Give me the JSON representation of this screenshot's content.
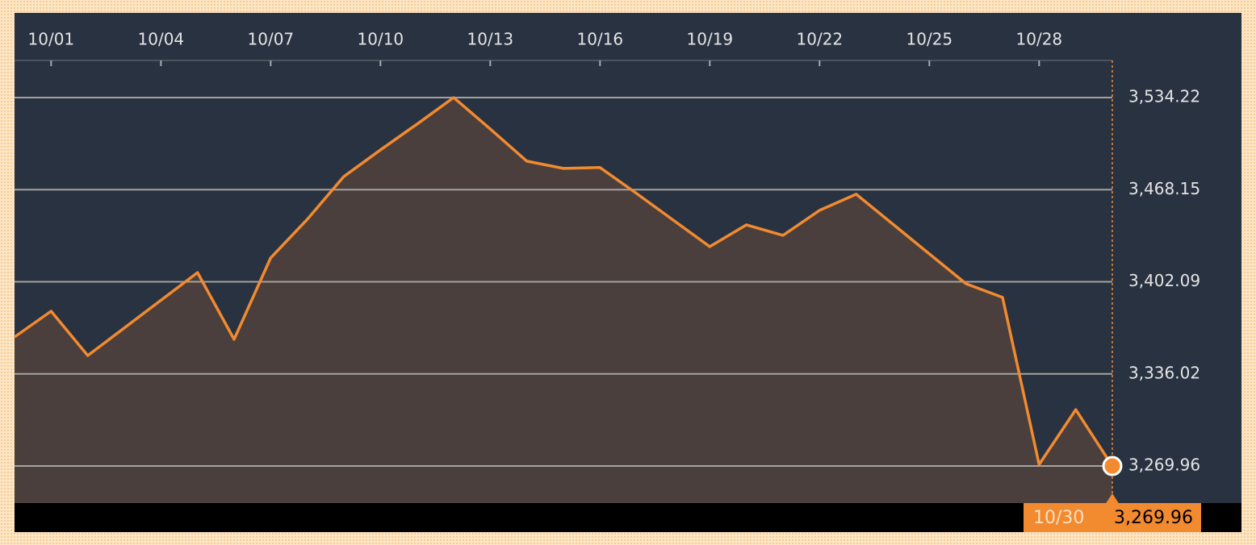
{
  "chart_data": {
    "type": "area",
    "x": [
      0,
      1,
      2,
      5,
      6,
      7,
      8,
      9,
      10,
      11,
      12,
      13,
      14,
      15,
      16,
      17,
      18,
      19,
      20,
      21,
      22,
      23,
      24,
      25,
      26,
      27,
      28,
      29,
      30
    ],
    "values": [
      3362.5,
      3381.0,
      3349.2,
      3408.7,
      3360.8,
      3419.2,
      3446.9,
      3477.6,
      3496.7,
      3515.2,
      3534.2,
      3511.7,
      3488.6,
      3483.4,
      3484.0,
      3465.4,
      3446.3,
      3427.3,
      3442.9,
      3435.4,
      3453.3,
      3464.9,
      3443.5,
      3422.1,
      3400.7,
      3390.9,
      3271.1,
      3310.4,
      3269.96
    ],
    "color": "#f28a30",
    "xlim": [
      0,
      30
    ],
    "xticks": [
      {
        "value": 1,
        "label": "10/01"
      },
      {
        "value": 4,
        "label": "10/04"
      },
      {
        "value": 7,
        "label": "10/07"
      },
      {
        "value": 10,
        "label": "10/10"
      },
      {
        "value": 13,
        "label": "10/13"
      },
      {
        "value": 16,
        "label": "10/16"
      },
      {
        "value": 19,
        "label": "10/19"
      },
      {
        "value": 22,
        "label": "10/22"
      },
      {
        "value": 25,
        "label": "10/25"
      },
      {
        "value": 28,
        "label": "10/28"
      }
    ],
    "ylim": [
      3243.4,
      3560.8
    ],
    "yticks": [
      {
        "value": 3269.96,
        "label": "3,269.96"
      },
      {
        "value": 3336.02,
        "label": "3,336.02"
      },
      {
        "value": 3402.09,
        "label": "3,402.09"
      },
      {
        "value": 3468.15,
        "label": "3,468.15"
      },
      {
        "value": 3534.22,
        "label": "3,534.22"
      }
    ],
    "grid": true,
    "marker_date": "10/30",
    "marker_value_label": "3,269.96"
  }
}
